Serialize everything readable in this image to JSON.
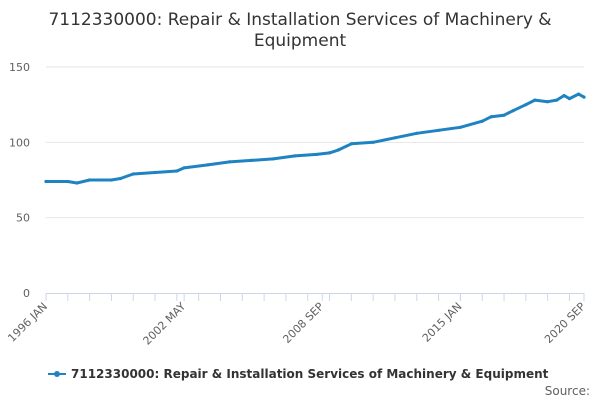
{
  "colors": {
    "series": "#1f83c2",
    "grid": "#e6e6e6",
    "axis": "#ccd6eb",
    "text": "#333333"
  },
  "source_label": "Source:",
  "chart_data": {
    "type": "line",
    "title_lines": [
      "7112330000: Repair & Installation Services of Machinery &",
      "Equipment"
    ],
    "ylim": [
      0,
      150
    ],
    "y_ticks": [
      0,
      50,
      100,
      150
    ],
    "x_range": [
      "1996-01",
      "2020-09"
    ],
    "x_ticks": [
      "1996 JAN",
      "2002 MAY",
      "2008 SEP",
      "2015 JAN",
      "2020 SEP"
    ],
    "grid": true,
    "legend": "bottom-center",
    "series": [
      {
        "name": "7112330000: Repair & Installation Services of Machinery & Equipment",
        "x": [
          "1996-01",
          "1997-01",
          "1997-06",
          "1998-01",
          "1999-01",
          "1999-06",
          "2000-01",
          "2001-01",
          "2002-01",
          "2002-05",
          "2003-06",
          "2004-06",
          "2005-06",
          "2006-06",
          "2007-06",
          "2008-06",
          "2009-01",
          "2009-06",
          "2010-01",
          "2011-01",
          "2012-01",
          "2013-01",
          "2014-01",
          "2015-01",
          "2016-01",
          "2016-06",
          "2017-01",
          "2017-06",
          "2018-01",
          "2018-06",
          "2019-01",
          "2019-06",
          "2019-10",
          "2020-01",
          "2020-06",
          "2020-09"
        ],
        "values": [
          74,
          74,
          73,
          75,
          75,
          76,
          79,
          80,
          81,
          83,
          85,
          87,
          88,
          89,
          91,
          92,
          93,
          95,
          99,
          100,
          103,
          106,
          108,
          110,
          114,
          117,
          118,
          121,
          125,
          128,
          127,
          128,
          131,
          129,
          132,
          130
        ]
      }
    ]
  }
}
